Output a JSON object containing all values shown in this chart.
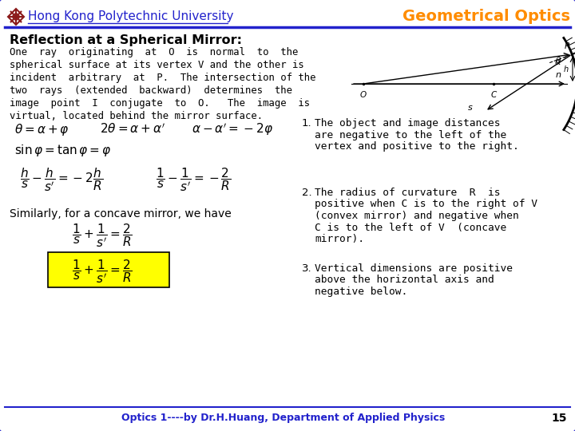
{
  "title_left": "Hong Kong Polytechnic University",
  "title_right": "Geometrical Optics",
  "section_title": "Reflection at a Spherical Mirror:",
  "body_lines": [
    "One  ray  originating  at  O  is  normal  to  the",
    "spherical surface at its vertex V and the other is",
    "incident  arbitrary  at  P.  The intersection of the",
    "two  rays  (extended  backward)  determines  the",
    "image  point  I  conjugate  to  O.   The  image  is",
    "virtual, located behind the mirror surface."
  ],
  "similarly_text": "Similarly, for a concave mirror, we have",
  "notes": [
    [
      "The object and image distances",
      "are negative to the left of the",
      "vertex and positive to the right."
    ],
    [
      "The radius of curvature  R  is",
      "positive when C is to the right of V",
      "(convex mirror) and negative when",
      "C is to the left of V  (concave",
      "mirror)."
    ],
    [
      "Vertical dimensions are positive",
      "above the horizontal axis and",
      "negative below."
    ]
  ],
  "footer": "Optics 1----by Dr.H.Huang, Department of Applied Physics",
  "page_num": "15",
  "border_color": "#2222cc",
  "title_left_color": "#2222cc",
  "title_right_color": "#ff8c00",
  "hku_logo_color": "#8b1a1a",
  "footer_color": "#2222cc",
  "highlight_color": "#ffff00",
  "bg_color": "#ffffff"
}
